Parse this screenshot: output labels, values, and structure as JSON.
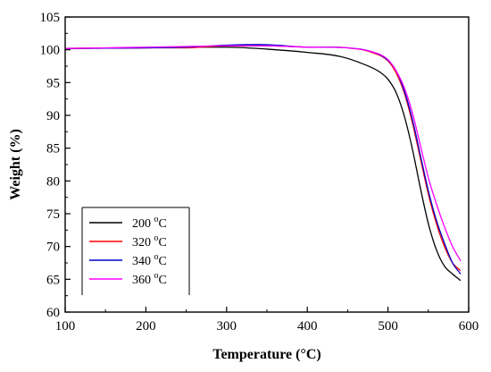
{
  "chart_data": {
    "type": "line",
    "xlabel": "Temperature (°C)",
    "ylabel": "Weight (%)",
    "xlim": [
      100,
      600
    ],
    "ylim": [
      60,
      105
    ],
    "xticks": [
      100,
      200,
      300,
      400,
      500,
      600
    ],
    "yticks": [
      60,
      65,
      70,
      75,
      80,
      85,
      90,
      95,
      100,
      105
    ],
    "grid": false,
    "legend_position": "bottom-left",
    "series": [
      {
        "name": "200 °C",
        "color": "#000000",
        "points": [
          [
            100,
            100.2
          ],
          [
            200,
            100.3
          ],
          [
            250,
            100.4
          ],
          [
            300,
            100.4
          ],
          [
            350,
            100.1
          ],
          [
            400,
            99.6
          ],
          [
            440,
            99.0
          ],
          [
            470,
            97.8
          ],
          [
            490,
            96.6
          ],
          [
            500,
            95.5
          ],
          [
            510,
            93.5
          ],
          [
            520,
            90.0
          ],
          [
            530,
            85.0
          ],
          [
            540,
            79.0
          ],
          [
            550,
            73.5
          ],
          [
            560,
            69.5
          ],
          [
            570,
            67.0
          ],
          [
            580,
            65.8
          ],
          [
            590,
            64.8
          ]
        ]
      },
      {
        "name": "320 °C",
        "color": "#ff0000",
        "points": [
          [
            100,
            100.2
          ],
          [
            200,
            100.3
          ],
          [
            250,
            100.3
          ],
          [
            300,
            100.6
          ],
          [
            350,
            100.6
          ],
          [
            400,
            100.4
          ],
          [
            450,
            100.3
          ],
          [
            480,
            99.6
          ],
          [
            500,
            98.3
          ],
          [
            510,
            96.5
          ],
          [
            520,
            93.5
          ],
          [
            530,
            89.0
          ],
          [
            540,
            83.5
          ],
          [
            550,
            78.0
          ],
          [
            560,
            73.5
          ],
          [
            570,
            70.0
          ],
          [
            580,
            67.5
          ],
          [
            590,
            66.3
          ]
        ]
      },
      {
        "name": "340 °C",
        "color": "#0000cc",
        "points": [
          [
            100,
            100.2
          ],
          [
            200,
            100.3
          ],
          [
            250,
            100.4
          ],
          [
            300,
            100.7
          ],
          [
            340,
            100.8
          ],
          [
            400,
            100.4
          ],
          [
            450,
            100.3
          ],
          [
            480,
            99.7
          ],
          [
            500,
            98.4
          ],
          [
            510,
            96.8
          ],
          [
            520,
            93.8
          ],
          [
            530,
            89.5
          ],
          [
            540,
            84.0
          ],
          [
            550,
            78.5
          ],
          [
            560,
            74.0
          ],
          [
            570,
            70.5
          ],
          [
            580,
            67.5
          ],
          [
            590,
            65.8
          ]
        ]
      },
      {
        "name": "360 °C",
        "color": "#ff00ff",
        "points": [
          [
            100,
            100.2
          ],
          [
            200,
            100.4
          ],
          [
            250,
            100.5
          ],
          [
            300,
            100.6
          ],
          [
            350,
            100.6
          ],
          [
            400,
            100.4
          ],
          [
            450,
            100.3
          ],
          [
            480,
            99.7
          ],
          [
            500,
            98.5
          ],
          [
            510,
            96.8
          ],
          [
            520,
            94.3
          ],
          [
            530,
            90.5
          ],
          [
            540,
            85.5
          ],
          [
            550,
            80.5
          ],
          [
            560,
            76.5
          ],
          [
            570,
            73.0
          ],
          [
            580,
            70.0
          ],
          [
            590,
            67.8
          ]
        ]
      }
    ]
  }
}
